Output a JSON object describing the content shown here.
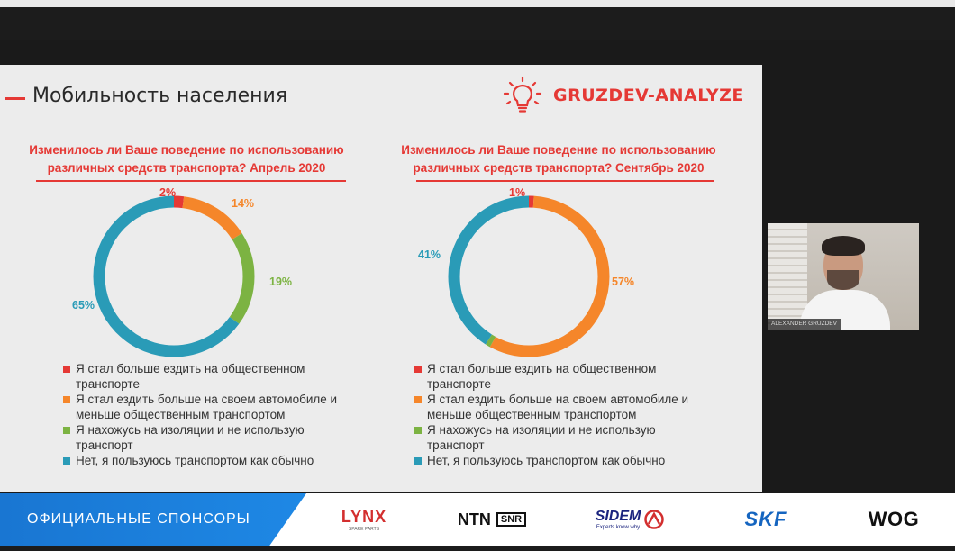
{
  "slide": {
    "title": "Мобильность населения",
    "logo_text": "GRUZDEV-ANALYZE",
    "logo_icon": "lightbulb-icon"
  },
  "left_chart": {
    "question_line1": "Изменилось ли Ваше поведение по использованию",
    "question_line2": "различных средств транспорта? Апрель 2020",
    "labels": [
      "2%",
      "14%",
      "19%",
      "65%"
    ]
  },
  "right_chart": {
    "question_line1": "Изменилось ли Ваше поведение по использованию",
    "question_line2": "различных средств транспорта? Сентябрь 2020",
    "labels": [
      "1%",
      "57%",
      "41%"
    ]
  },
  "legend": [
    {
      "line1": "Я стал больше ездить на общественном",
      "line2": "транспорте"
    },
    {
      "line1": "Я стал ездить больше на своем автомобиле и",
      "line2": "меньше общественным транспортом"
    },
    {
      "line1": "Я нахожусь на изоляции и не использую",
      "line2": "транспорт"
    },
    {
      "line1": "Нет, я пользуюсь транспортом как обычно",
      "line2": ""
    }
  ],
  "colors": {
    "red": "#e53935",
    "orange": "#f5862a",
    "green": "#7cb342",
    "teal": "#2a9bb7"
  },
  "chart_data": [
    {
      "type": "pie",
      "title": "Изменилось ли Ваше поведение по использованию различных средств транспорта? Апрель 2020",
      "categories": [
        "Я стал больше ездить на общественном транспорте",
        "Я стал ездить больше на своем автомобиле и меньше общественным транспортом",
        "Я нахожусь на изоляции и не использую транспорт",
        "Нет, я пользуюсь транспортом как обычно"
      ],
      "values": [
        2,
        14,
        19,
        65
      ]
    },
    {
      "type": "pie",
      "title": "Изменилось ли Ваше поведение по использованию различных средств транспорта? Сентябрь 2020",
      "categories": [
        "Я стал больше ездить на общественном транспорте",
        "Я стал ездить больше на своем автомобиле и меньше общественным транспортом",
        "Я нахожусь на изоляции и не использую транспорт",
        "Нет, я пользуюсь транспортом как обычно"
      ],
      "values": [
        1,
        57,
        1,
        41
      ]
    }
  ],
  "webcam": {
    "name": "ALEXANDER GRUZDEV"
  },
  "sponsors": {
    "label": "ОФИЦИАЛЬНЫЕ СПОНСОРЫ",
    "items": [
      {
        "name": "LYNX",
        "sub": "SPARE PARTS"
      },
      {
        "name": "NTN",
        "sub": "SNR"
      },
      {
        "name": "SIDEM",
        "sub": "Experts know why"
      },
      {
        "name": "SKF",
        "sub": ""
      },
      {
        "name": "WOG",
        "sub": ""
      }
    ]
  }
}
